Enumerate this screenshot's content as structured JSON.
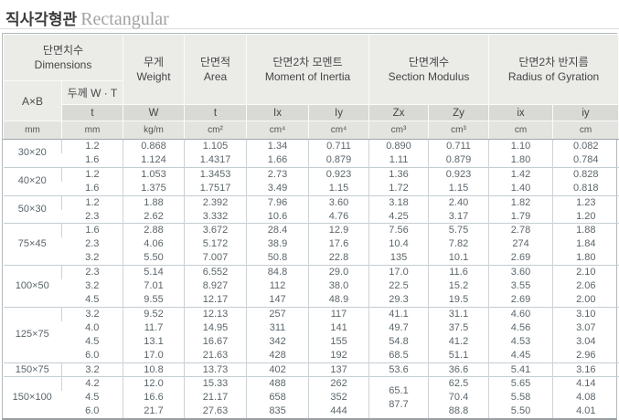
{
  "title": {
    "kr": "직사각형관",
    "en": "Rectangular"
  },
  "colors": {
    "header_bg": "#ebebe8",
    "subheader_bg": "#d9d9d6",
    "units_bg": "#e3e3e0",
    "grid_line": "#ccd3d6",
    "data_text": "#5b666b"
  },
  "table": {
    "groups_header": [
      {
        "kr": "단면치수",
        "en": "Dimensions"
      },
      {
        "kr": "무게",
        "en": "Weight"
      },
      {
        "kr": "단면적",
        "en": "Area"
      },
      {
        "kr": "단면2차 모멘트",
        "en": "Moment of Inertia"
      },
      {
        "kr": "단면계수",
        "en": "Section Modulus"
      },
      {
        "kr": "단면2차 반지름",
        "en": "Radius of Gyration"
      }
    ],
    "sub_headers": {
      "axb": "A×B",
      "thickness": "두께 W · T",
      "cols": [
        "t",
        "W",
        "t",
        "Ix",
        "Iy",
        "Zx",
        "Zy",
        "ix",
        "iy"
      ]
    },
    "units": [
      "mm",
      "mm",
      "kg/m",
      "cm²",
      "cm⁴",
      "cm⁴",
      "cm³",
      "cm³",
      "cm",
      "cm"
    ],
    "groups": [
      {
        "size": "30×20",
        "rows": [
          [
            "1.2",
            "0.868",
            "1.105",
            "1.34",
            "0.711",
            "0.890",
            "0.711",
            "1.10",
            "0.082"
          ],
          [
            "1.6",
            "1.124",
            "1.4317",
            "1.66",
            "0.879",
            "1.11",
            "0.879",
            "1.80",
            "0.784"
          ]
        ]
      },
      {
        "size": "40×20",
        "rows": [
          [
            "1.2",
            "1.053",
            "1.3453",
            "2.73",
            "0.923",
            "1.36",
            "0.923",
            "1.42",
            "0.828"
          ],
          [
            "1.6",
            "1.375",
            "1.7517",
            "3.49",
            "1.15",
            "1.72",
            "1.15",
            "1.40",
            "0.818"
          ]
        ]
      },
      {
        "size": "50×30",
        "rows": [
          [
            "1.2",
            "1.88",
            "2.392",
            "7.96",
            "3.60",
            "3.18",
            "2.40",
            "1.82",
            "1.23"
          ],
          [
            "2.3",
            "2.62",
            "3.332",
            "10.6",
            "4.76",
            "4.25",
            "3.17",
            "1.79",
            "1.20"
          ]
        ]
      },
      {
        "size": "75×45",
        "rows": [
          [
            "1.6",
            "2.88",
            "3.672",
            "28.4",
            "12.9",
            "7.56",
            "5.75",
            "2.78",
            "1.88"
          ],
          [
            "2.3",
            "4.06",
            "5.172",
            "38.9",
            "17.6",
            "10.4",
            "7.82",
            "274",
            "1.84"
          ],
          [
            "3.2",
            "5.50",
            "7.007",
            "50.8",
            "22.8",
            "135",
            "10.1",
            "2.69",
            "1.80"
          ]
        ]
      },
      {
        "size": "100×50",
        "rows": [
          [
            "2.3",
            "5.14",
            "6.552",
            "84.8",
            "29.0",
            "17.0",
            "11.6",
            "3.60",
            "2.10"
          ],
          [
            "3.2",
            "7.01",
            "8.927",
            "112",
            "38.0",
            "22.5",
            "15.2",
            "3.55",
            "2.06"
          ],
          [
            "4.5",
            "9.55",
            "12.17",
            "147",
            "48.9",
            "29.3",
            "19.5",
            "2.69",
            "2.00"
          ]
        ]
      },
      {
        "size": "125×75",
        "rows": [
          [
            "3.2",
            "9.52",
            "12.13",
            "257",
            "117",
            "41.1",
            "31.1",
            "4.60",
            "3.10"
          ],
          [
            "4.0",
            "11.7",
            "14.95",
            "311",
            "141",
            "49.7",
            "37.5",
            "4.56",
            "3.07"
          ],
          [
            "4.5",
            "13.1",
            "16.67",
            "342",
            "155",
            "54.8",
            "41.2",
            "4.53",
            "3.04"
          ],
          [
            "6.0",
            "17.0",
            "21.63",
            "428",
            "192",
            "68.5",
            "51.1",
            "4.45",
            "2.96"
          ]
        ]
      },
      {
        "size": "150×75",
        "rows": [
          [
            "3.2",
            "10.8",
            "13.73",
            "402",
            "137",
            "53.6",
            "36.6",
            "5.41",
            "3.16"
          ]
        ]
      },
      {
        "size": "150×100",
        "zx_merged": [
          "65.1",
          "87.7"
        ],
        "rows": [
          [
            "4.2",
            "12.0",
            "15.33",
            "488",
            "262",
            null,
            "62.5",
            "5.65",
            "4.14"
          ],
          [
            "4.5",
            "16.6",
            "21.17",
            "658",
            "352",
            null,
            "70.4",
            "5.58",
            "4.08"
          ],
          [
            "6.0",
            "21.7",
            "27.63",
            "835",
            "444",
            null,
            "88.8",
            "5.50",
            "4.01"
          ]
        ]
      }
    ]
  }
}
